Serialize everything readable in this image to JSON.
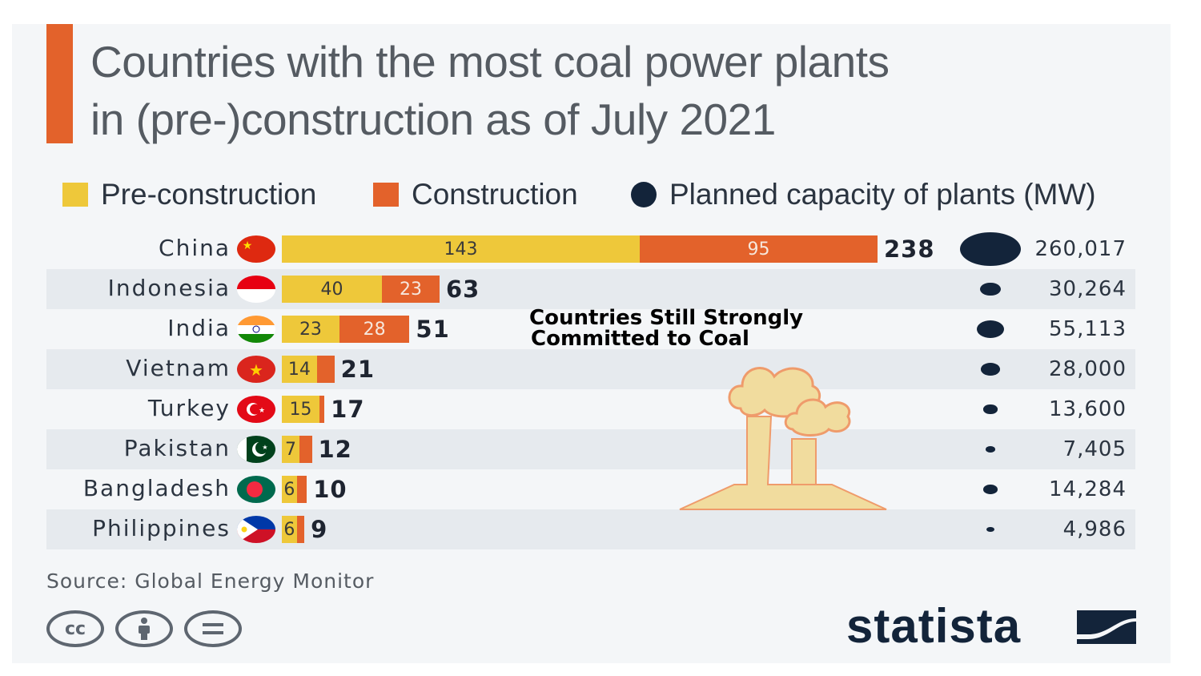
{
  "title": {
    "line1": "Countries with the most coal power plants",
    "line2": "in (pre-)construction as of July 2021"
  },
  "legend": {
    "pre": "Pre-construction",
    "con": "Construction",
    "cap": "Planned capacity of plants (MW)"
  },
  "annotation": {
    "line1": "Countries Still Strongly",
    "line2": "Committed to Coal"
  },
  "source": "Source: Global Energy Monitor",
  "brand": "statista",
  "license_icons": [
    "cc-icon",
    "attribution-icon",
    "no-derivatives-icon"
  ],
  "colors": {
    "pre": "#eec83a",
    "construction": "#e3622b",
    "capacity": "#13243a"
  },
  "chart_data": {
    "type": "bar",
    "orientation": "horizontal",
    "stacked": true,
    "title": "Countries with the most coal power plants in (pre-)construction as of July 2021",
    "categories": [
      "China",
      "Indonesia",
      "India",
      "Vietnam",
      "Turkey",
      "Pakistan",
      "Bangladesh",
      "Philippines"
    ],
    "series": [
      {
        "name": "Pre-construction",
        "values": [
          143,
          40,
          23,
          14,
          15,
          7,
          6,
          6
        ]
      },
      {
        "name": "Construction",
        "values": [
          95,
          23,
          28,
          7,
          2,
          5,
          4,
          3
        ]
      }
    ],
    "totals": [
      238,
      63,
      51,
      21,
      17,
      12,
      10,
      9
    ],
    "capacity_label": "Planned capacity of plants (MW)",
    "capacity": [
      260017,
      30264,
      55113,
      28000,
      13600,
      7405,
      14284,
      4986
    ],
    "capacity_labels": [
      "260,017",
      "30,264",
      "55,113",
      "28,000",
      "13,600",
      "7,405",
      "14,284",
      "4,986"
    ],
    "flags": [
      "china",
      "indonesia",
      "india",
      "vietnam",
      "turkey",
      "pakistan",
      "bangladesh",
      "philippines"
    ],
    "segment_labels_shown": {
      "pre": [
        true,
        true,
        true,
        true,
        true,
        true,
        true,
        true
      ],
      "con": [
        true,
        true,
        true,
        false,
        false,
        false,
        false,
        false
      ]
    }
  }
}
